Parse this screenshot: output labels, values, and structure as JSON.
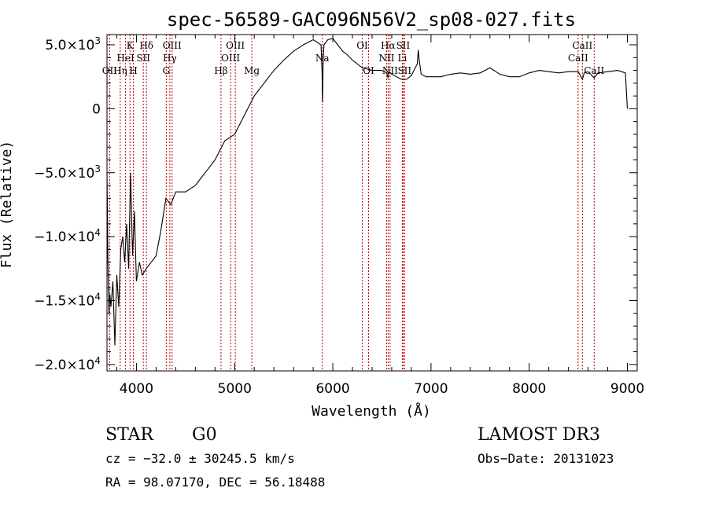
{
  "chart_data": {
    "type": "line",
    "title": "spec-56589-GAC096N56V2_sp08-027.fits",
    "xlabel": "Wavelength (Å)",
    "ylabel": "Flux (Relative)",
    "xlim": [
      3700,
      9100
    ],
    "ylim": [
      -20500,
      5800
    ],
    "x_ticks": [
      {
        "value": 4000,
        "label": "4000"
      },
      {
        "value": 5000,
        "label": "5000"
      },
      {
        "value": 6000,
        "label": "6000"
      },
      {
        "value": 7000,
        "label": "7000"
      },
      {
        "value": 8000,
        "label": "8000"
      },
      {
        "value": 9000,
        "label": "9000"
      }
    ],
    "y_ticks": [
      {
        "value": 5000,
        "mantissa": "5.0",
        "exp": "3"
      },
      {
        "value": 0,
        "mantissa": "0",
        "exp": ""
      },
      {
        "value": -5000,
        "mantissa": "−5.0",
        "exp": "3"
      },
      {
        "value": -10000,
        "mantissa": "−1.0",
        "exp": "4"
      },
      {
        "value": -15000,
        "mantissa": "−1.5",
        "exp": "4"
      },
      {
        "value": -20000,
        "mantissa": "−2.0",
        "exp": "4"
      }
    ],
    "series": [
      {
        "name": "flux",
        "x": [
          3700,
          3710,
          3720,
          3730,
          3740,
          3760,
          3780,
          3800,
          3820,
          3840,
          3860,
          3880,
          3900,
          3920,
          3940,
          3960,
          3980,
          4000,
          4030,
          4060,
          4100,
          4150,
          4200,
          4250,
          4300,
          4350,
          4400,
          4500,
          4600,
          4700,
          4800,
          4900,
          5000,
          5100,
          5200,
          5300,
          5400,
          5500,
          5600,
          5700,
          5800,
          5880,
          5890,
          5896,
          5902,
          5910,
          5950,
          6000,
          6050,
          6100,
          6150,
          6200,
          6300,
          6400,
          6500,
          6550,
          6563,
          6575,
          6600,
          6650,
          6700,
          6750,
          6800,
          6860,
          6870,
          6880,
          6900,
          6950,
          7000,
          7100,
          7200,
          7300,
          7400,
          7500,
          7600,
          7700,
          7800,
          7900,
          8000,
          8100,
          8200,
          8300,
          8400,
          8500,
          8542,
          8560,
          8600,
          8662,
          8700,
          8800,
          8900,
          8980,
          9000
        ],
        "y": [
          -5000,
          -12000,
          -16000,
          -14500,
          -15500,
          -13500,
          -18500,
          -13000,
          -15500,
          -11000,
          -10000,
          -12000,
          -9000,
          -12500,
          -5000,
          -11500,
          -8000,
          -13500,
          -12000,
          -13000,
          -12500,
          -12000,
          -11500,
          -9500,
          -7000,
          -7500,
          -6500,
          -6500,
          -6000,
          -5000,
          -4000,
          -2500,
          -2000,
          -500,
          1000,
          2000,
          3000,
          3800,
          4500,
          5000,
          5400,
          5000,
          3000,
          500,
          3800,
          5000,
          5400,
          5500,
          5000,
          4500,
          4200,
          3800,
          3200,
          3000,
          3000,
          2800,
          2400,
          2900,
          2700,
          2500,
          2300,
          2300,
          2600,
          3500,
          4600,
          3800,
          2700,
          2500,
          2500,
          2500,
          2700,
          2800,
          2700,
          2800,
          3200,
          2700,
          2500,
          2500,
          2800,
          3000,
          2900,
          2800,
          2900,
          2900,
          2300,
          2800,
          2900,
          2400,
          2800,
          2900,
          3000,
          2800,
          0
        ]
      }
    ],
    "spectral_lines": [
      {
        "wl": 3727,
        "row": 2,
        "label": "OII"
      },
      {
        "wl": 3835,
        "row": 2,
        "label": "Hη"
      },
      {
        "wl": 3889,
        "row": 1,
        "label": "HeI"
      },
      {
        "wl": 3934,
        "row": 0,
        "label": "K"
      },
      {
        "wl": 3969,
        "row": 2,
        "label": "H"
      },
      {
        "wl": 4070,
        "row": 1,
        "label": "SII"
      },
      {
        "wl": 4102,
        "row": 0,
        "label": "Hδ"
      },
      {
        "wl": 4304,
        "row": 2,
        "label": "G"
      },
      {
        "wl": 4340,
        "row": 1,
        "label": "Hγ"
      },
      {
        "wl": 4363,
        "row": 0,
        "label": "OIII"
      },
      {
        "wl": 4861,
        "row": 2,
        "label": "Hβ"
      },
      {
        "wl": 4959,
        "row": 1,
        "label": "OIII"
      },
      {
        "wl": 5007,
        "row": 0,
        "label": "OIII"
      },
      {
        "wl": 5175,
        "row": 2,
        "label": "Mg"
      },
      {
        "wl": 5893,
        "row": 1,
        "label": "Na"
      },
      {
        "wl": 6300,
        "row": 0,
        "label": "OI"
      },
      {
        "wl": 6364,
        "row": 2,
        "label": "OI"
      },
      {
        "wl": 6548,
        "row": 1,
        "label": "NII"
      },
      {
        "wl": 6563,
        "row": 0,
        "label": "Hα"
      },
      {
        "wl": 6583,
        "row": 2,
        "label": "NII"
      },
      {
        "wl": 6708,
        "row": 1,
        "label": "Li"
      },
      {
        "wl": 6716,
        "row": 0,
        "label": "SII"
      },
      {
        "wl": 6731,
        "row": 2,
        "label": "SII"
      },
      {
        "wl": 8498,
        "row": 1,
        "label": "CaII"
      },
      {
        "wl": 8542,
        "row": 0,
        "label": "CaII"
      },
      {
        "wl": 8662,
        "row": 2,
        "label": "CaII"
      }
    ]
  },
  "info": {
    "class": "STAR",
    "subclass": "G0",
    "cz": "cz = −32.0 ± 30245.5 km/s",
    "radec": "RA =  98.07170, DEC =  56.18488",
    "survey": "LAMOST DR3",
    "obsdate": "Obs−Date: 20131023"
  },
  "colors": {
    "spectrum": "#000000",
    "line_marker": "#c00000",
    "axis": "#000000"
  }
}
